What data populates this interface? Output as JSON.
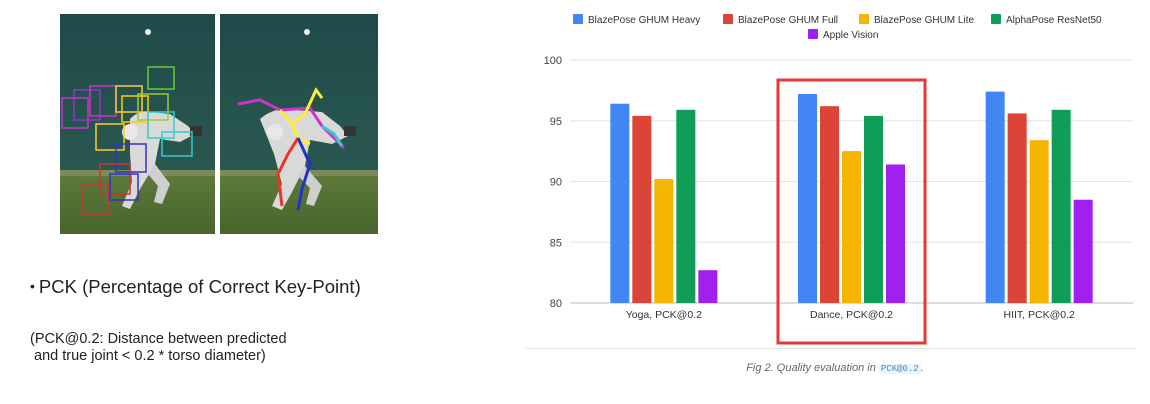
{
  "left_panel": {
    "bullet_symbol": "•",
    "bullet_text": "PCK (Percentage of Correct Key-Point)",
    "note_line1": "(PCK@0.2: Distance between predicted",
    "note_line2": " and true joint < 0.2 * torso diameter)"
  },
  "caption": {
    "text": "Fig 2. Quality evaluation in",
    "code": "PCK@0.2",
    "suffix": "."
  },
  "chart_data": {
    "type": "bar",
    "categories": [
      "Yoga, PCK@0.2",
      "Dance, PCK@0.2",
      "HIIT, PCK@0.2"
    ],
    "series": [
      {
        "name": "BlazePose GHUM Heavy",
        "color": "#4285f4",
        "values": [
          96.4,
          97.2,
          97.4
        ]
      },
      {
        "name": "BlazePose GHUM Full",
        "color": "#db4437",
        "values": [
          95.4,
          96.2,
          95.6
        ]
      },
      {
        "name": "BlazePose GHUM Lite",
        "color": "#f4b400",
        "values": [
          90.2,
          92.5,
          93.4
        ]
      },
      {
        "name": "AlphaPose ResNet50",
        "color": "#0f9d58",
        "values": [
          95.9,
          95.4,
          95.9
        ]
      },
      {
        "name": "Apple Vision",
        "color": "#a020f0",
        "values": [
          82.7,
          91.4,
          88.5
        ]
      }
    ],
    "yticks": [
      80,
      85,
      90,
      95,
      100
    ],
    "ylim": [
      80,
      100
    ],
    "grid": true,
    "legend_position": "top",
    "highlight": {
      "category": "Dance, PCK@0.2",
      "color": "#e53935"
    }
  }
}
